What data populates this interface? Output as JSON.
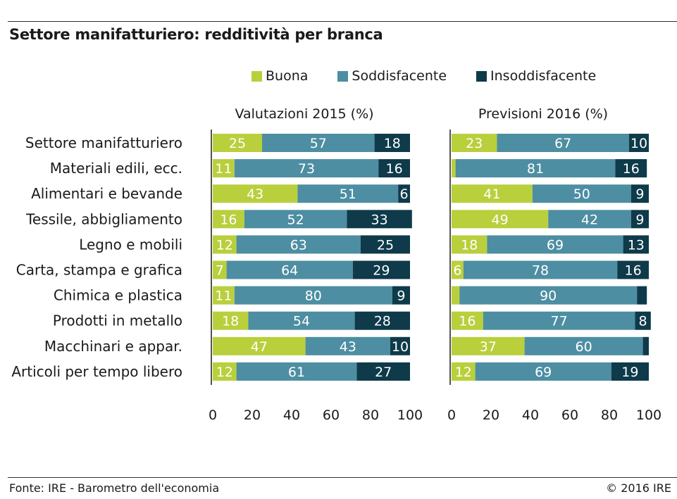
{
  "title": "Settore manifatturiero: redditività per branca",
  "legend": [
    {
      "label": "Buona",
      "color": "#b9cf3c"
    },
    {
      "label": "Soddisfacente",
      "color": "#4d8ea2"
    },
    {
      "label": "Insoddisfacente",
      "color": "#0e3a4a"
    }
  ],
  "footer": {
    "source": "Fonte: IRE - Barometro dell'economia",
    "copyright": "© 2016 IRE"
  },
  "chart_data": {
    "type": "bar",
    "orientation": "horizontal",
    "stacked": true,
    "categories": [
      "Settore manifatturiero",
      "Materiali edili, ecc.",
      "Alimentari e bevande",
      "Tessile, abbigliamento",
      "Legno e mobili",
      "Carta, stampa e grafica",
      "Chimica e plastica",
      "Prodotti in metallo",
      "Macchinari e appar.",
      "Articoli per tempo libero"
    ],
    "xlim": [
      0,
      100
    ],
    "xticks": [
      "0",
      "20",
      "40",
      "60",
      "80",
      "100"
    ],
    "grid": false,
    "legend_position": "top",
    "panels": [
      {
        "title": "Valutazioni 2015 (%)",
        "series": [
          {
            "name": "Buona",
            "values": [
              25,
              11,
              43,
              16,
              12,
              7,
              11,
              18,
              47,
              12
            ],
            "labels": [
              "25",
              "11",
              "43",
              "16",
              "12",
              "7",
              "11",
              "18",
              "47",
              "12"
            ]
          },
          {
            "name": "Soddisfacente",
            "values": [
              57,
              73,
              51,
              52,
              63,
              64,
              80,
              54,
              43,
              61
            ],
            "labels": [
              "57",
              "73",
              "51",
              "52",
              "63",
              "64",
              "80",
              "54",
              "43",
              "61"
            ]
          },
          {
            "name": "Insoddisfacente",
            "values": [
              18,
              16,
              6,
              33,
              25,
              29,
              9,
              28,
              10,
              27
            ],
            "labels": [
              "18",
              "16",
              "6",
              "33",
              "25",
              "29",
              "9",
              "28",
              "10",
              "27"
            ]
          }
        ]
      },
      {
        "title": "Previsioni 2016 (%)",
        "series": [
          {
            "name": "Buona",
            "values": [
              23,
              2,
              41,
              49,
              18,
              6,
              4,
              16,
              37,
              12
            ],
            "labels": [
              "23",
              "",
              "41",
              "49",
              "18",
              "6",
              "",
              "16",
              "37",
              "12"
            ]
          },
          {
            "name": "Soddisfacente",
            "values": [
              67,
              81,
              50,
              42,
              69,
              78,
              90,
              77,
              60,
              69
            ],
            "labels": [
              "67",
              "81",
              "50",
              "42",
              "69",
              "78",
              "90",
              "77",
              "60",
              "69"
            ]
          },
          {
            "name": "Insoddisfacente",
            "values": [
              10,
              16,
              9,
              9,
              13,
              16,
              5,
              8,
              3,
              19
            ],
            "labels": [
              "10",
              "16",
              "9",
              "9",
              "13",
              "16",
              "",
              "8",
              "",
              "19"
            ]
          }
        ]
      }
    ]
  }
}
